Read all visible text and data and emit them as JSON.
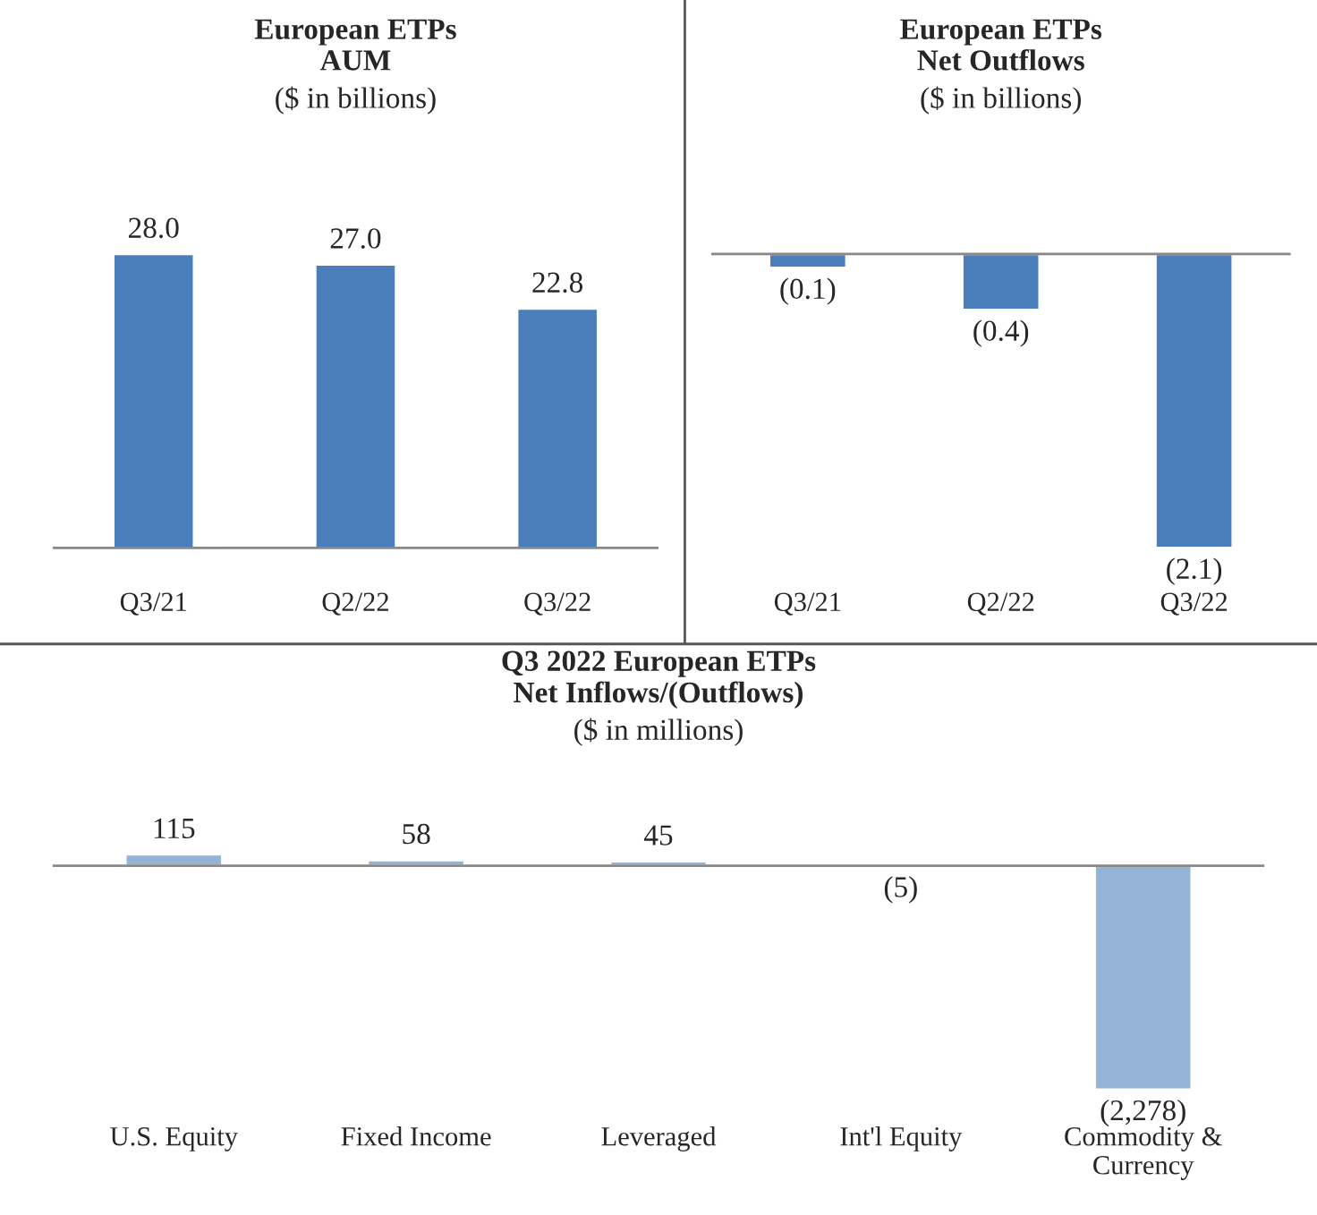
{
  "chart_data": [
    {
      "type": "bar",
      "title": "European ETPs\nAUM",
      "subtitle": "($ in billions)",
      "categories": [
        "Q3/21",
        "Q2/22",
        "Q3/22"
      ],
      "values": [
        28.0,
        27.0,
        22.8
      ],
      "color": "#4a7ebb",
      "value_labels": [
        "28.0",
        "27.0",
        "22.8"
      ]
    },
    {
      "type": "bar",
      "title": "European ETPs\nNet Outflows",
      "subtitle": "($ in billions)",
      "categories": [
        "Q3/21",
        "Q2/22",
        "Q3/22"
      ],
      "values": [
        -0.1,
        -0.4,
        -2.1
      ],
      "color": "#4a7ebb",
      "value_labels": [
        "(0.1)",
        "(0.4)",
        "(2.1)"
      ]
    },
    {
      "type": "bar",
      "title": "Q3 2022 European ETPs\nNet Inflows/(Outflows)",
      "subtitle": "($ in millions)",
      "categories": [
        "U.S. Equity",
        "Fixed Income",
        "Leveraged",
        "Int'l Equity",
        "Commodity &\nCurrency"
      ],
      "values": [
        115,
        58,
        45,
        -5,
        -2278
      ],
      "color": "#95b3d7",
      "value_labels": [
        "115",
        "58",
        "45",
        "(5)",
        "(2,278)"
      ]
    }
  ]
}
